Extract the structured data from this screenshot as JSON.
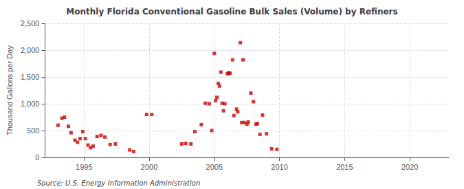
{
  "chart_data": {
    "type": "scatter",
    "title": "Monthly Florida Conventional Gasoline Bulk Sales (Volume) by Refiners",
    "ylabel": "Thousand Gallons per Day",
    "annotations": [
      "Source: U.S. Energy Information Administration"
    ],
    "color": "#cc0000",
    "marker": "square",
    "grid": true,
    "xlim": [
      1992,
      2023
    ],
    "ylim": [
      0,
      2500
    ],
    "xticks": [
      1995,
      2000,
      2005,
      2010,
      2015,
      2020
    ],
    "yticks": [
      0,
      500,
      {
        "value": 1000,
        "label": "1,000"
      },
      {
        "value": 1500,
        "label": "1,500"
      },
      {
        "value": 2000,
        "label": "2,000"
      },
      {
        "value": 2500,
        "label": "2,500"
      }
    ],
    "x": [
      1993.0,
      1993.3,
      1993.5,
      1993.8,
      1994.0,
      1994.3,
      1994.5,
      1994.7,
      1994.9,
      1995.1,
      1995.3,
      1995.5,
      1995.7,
      1996.0,
      1996.3,
      1996.6,
      1997.0,
      1997.4,
      1998.5,
      1998.8,
      1999.8,
      2000.2,
      2002.5,
      2002.8,
      2003.2,
      2003.5,
      2004.0,
      2004.3,
      2004.6,
      2004.8,
      2005.0,
      2005.1,
      2005.2,
      2005.3,
      2005.4,
      2005.5,
      2005.6,
      2005.7,
      2005.8,
      2006.0,
      2006.1,
      2006.2,
      2006.4,
      2006.5,
      2006.7,
      2006.8,
      2007.0,
      2007.1,
      2007.2,
      2007.3,
      2007.5,
      2007.6,
      2007.8,
      2008.0,
      2008.2,
      2008.3,
      2008.5,
      2008.7,
      2009.0,
      2009.4,
      2009.8
    ],
    "values": [
      600,
      730,
      750,
      580,
      460,
      320,
      280,
      350,
      480,
      350,
      230,
      180,
      210,
      390,
      410,
      380,
      240,
      250,
      140,
      110,
      800,
      800,
      250,
      260,
      250,
      480,
      610,
      1010,
      1000,
      500,
      1940,
      1060,
      1120,
      1380,
      1330,
      1590,
      1010,
      870,
      1000,
      1560,
      1580,
      1570,
      1820,
      780,
      900,
      850,
      2140,
      650,
      1820,
      650,
      620,
      660,
      1200,
      1040,
      620,
      630,
      430,
      790,
      440,
      160,
      150
    ]
  }
}
